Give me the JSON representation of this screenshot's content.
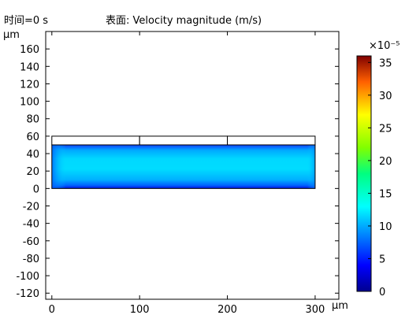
{
  "header": {
    "time_label": "时间=0 s",
    "surface_label": "表面: Velocity magnitude (m/s)"
  },
  "chart_data": {
    "type": "heatmap",
    "title": "表面: Velocity magnitude (m/s)",
    "subtitle": "时间=0 s",
    "xlabel": "µm",
    "ylabel": "µm",
    "xlim": [
      -7,
      327
    ],
    "ylim": [
      -127,
      180
    ],
    "x_ticks": [
      0,
      100,
      200,
      300
    ],
    "y_ticks": [
      160,
      140,
      120,
      100,
      80,
      60,
      40,
      20,
      0,
      -20,
      -40,
      -60,
      -80,
      -100,
      -120
    ],
    "y_tick_labels": [
      "160",
      "140",
      "120",
      "100",
      "80",
      "60",
      "40",
      "20",
      "0",
      "-20",
      "-40",
      "-60",
      "-80",
      "-100",
      "-120"
    ],
    "grid": false,
    "colormap": "rainbow",
    "colorbar": {
      "scale_label": "×10⁻⁵",
      "ticks": [
        0,
        5,
        10,
        15,
        20,
        25,
        30,
        35
      ],
      "range": [
        0,
        36
      ]
    },
    "fluid_domain": {
      "x": [
        0,
        300
      ],
      "y": [
        0,
        50
      ],
      "core_value": 13,
      "wall_value": 3
    },
    "membrane_strips": [
      {
        "x": [
          0,
          100
        ],
        "y": [
          50,
          60
        ]
      },
      {
        "x": [
          100,
          200
        ],
        "y": [
          50,
          60
        ]
      },
      {
        "x": [
          200,
          300
        ],
        "y": [
          50,
          60
        ]
      }
    ]
  }
}
